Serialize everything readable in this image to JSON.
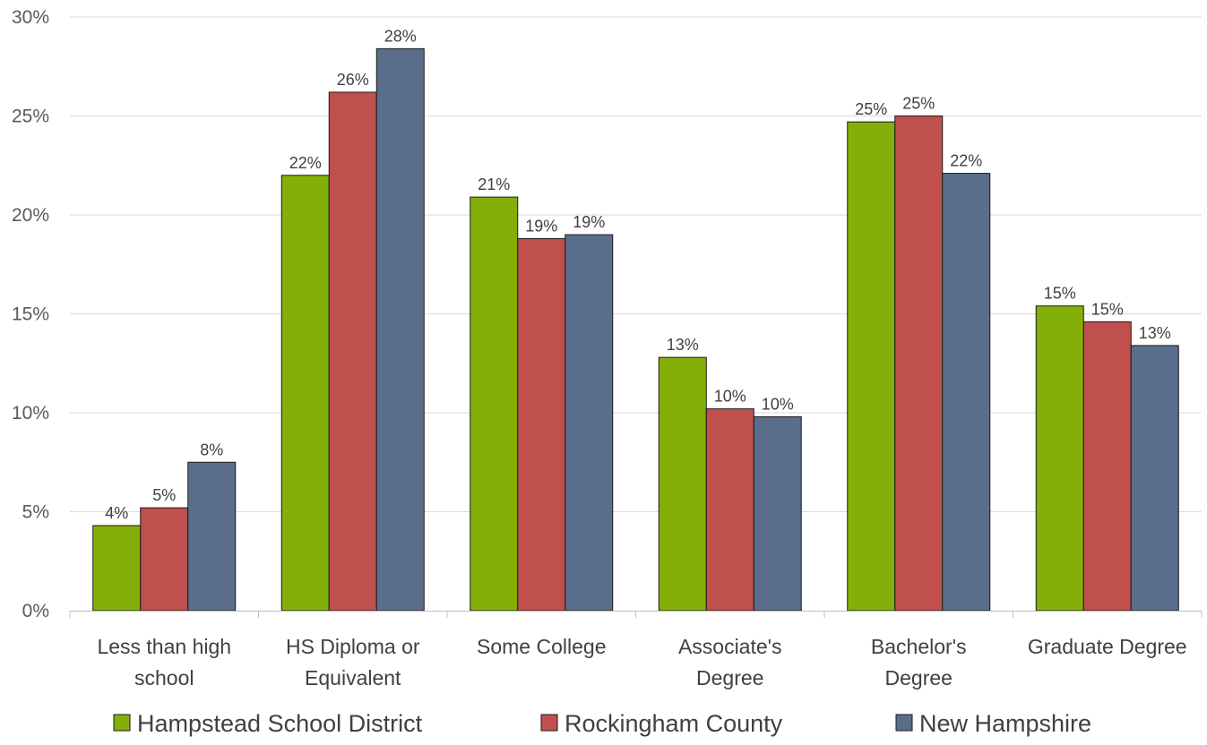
{
  "chart_data": {
    "type": "bar",
    "title": "",
    "xlabel": "",
    "ylabel": "",
    "ylim": [
      0,
      30
    ],
    "y_ticks": [
      "0%",
      "5%",
      "10%",
      "15%",
      "20%",
      "25%",
      "30%"
    ],
    "y_tick_values": [
      0,
      5,
      10,
      15,
      20,
      25,
      30
    ],
    "grid": true,
    "legend_position": "bottom",
    "categories": [
      [
        "Less than high",
        "school"
      ],
      [
        "HS Diploma or",
        "Equivalent"
      ],
      [
        "Some College"
      ],
      [
        "Associate's",
        "Degree"
      ],
      [
        "Bachelor's",
        "Degree"
      ],
      [
        "Graduate Degree"
      ]
    ],
    "series": [
      {
        "name": "Hampstead School District",
        "color": "#84AF09",
        "values": [
          4.3,
          22.0,
          20.9,
          12.8,
          24.7,
          15.4
        ],
        "labels": [
          "4%",
          "22%",
          "21%",
          "13%",
          "25%",
          "15%"
        ]
      },
      {
        "name": "Rockingham County",
        "color": "#C0504D",
        "values": [
          5.2,
          26.2,
          18.8,
          10.2,
          25.0,
          14.6
        ],
        "labels": [
          "5%",
          "26%",
          "19%",
          "10%",
          "25%",
          "15%"
        ]
      },
      {
        "name": "New Hampshire",
        "color": "#5A6E8C",
        "values": [
          7.5,
          28.4,
          19.0,
          9.8,
          22.1,
          13.4
        ],
        "labels": [
          "8%",
          "28%",
          "19%",
          "10%",
          "22%",
          "13%"
        ]
      }
    ]
  }
}
